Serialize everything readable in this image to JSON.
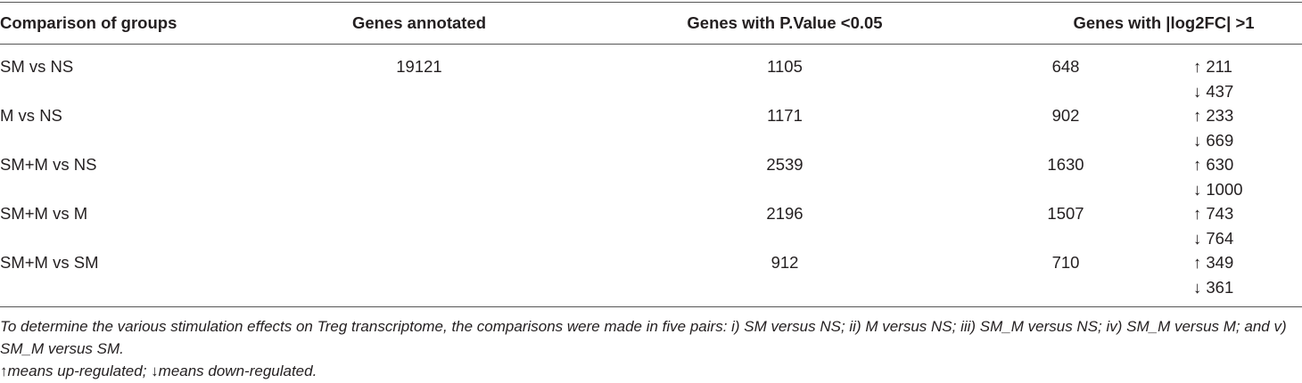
{
  "table": {
    "headers": [
      "Comparison of groups",
      "Genes annotated",
      "Genes with P.Value <0.05",
      "Genes with |log2FC| >1"
    ],
    "rows": [
      {
        "group": "SM vs NS",
        "annotated": "19121",
        "pvalue": "1105",
        "log2fc": "648",
        "up": "↑ 211",
        "down": "↓ 437"
      },
      {
        "group": "M vs NS",
        "pvalue": "1171",
        "log2fc": "902",
        "up": "↑ 233",
        "down": "↓ 669"
      },
      {
        "group": "SM+M vs NS",
        "pvalue": "2539",
        "log2fc": "1630",
        "up": "↑ 630",
        "down": "↓ 1000"
      },
      {
        "group": "SM+M vs M",
        "pvalue": "2196",
        "log2fc": "1507",
        "up": "↑ 743",
        "down": "↓ 764"
      },
      {
        "group": "SM+M vs SM",
        "pvalue": "912",
        "log2fc": "710",
        "up": "↑ 349",
        "down": "↓ 361"
      }
    ]
  },
  "footnotes": [
    "To determine the various stimulation effects on Treg transcriptome, the comparisons were made in five pairs: i) SM versus NS; ii) M versus NS; iii) SM_M versus NS; iv) SM_M versus M; and v) SM_M versus SM.",
    "↑means up-regulated; ↓means down-regulated."
  ]
}
